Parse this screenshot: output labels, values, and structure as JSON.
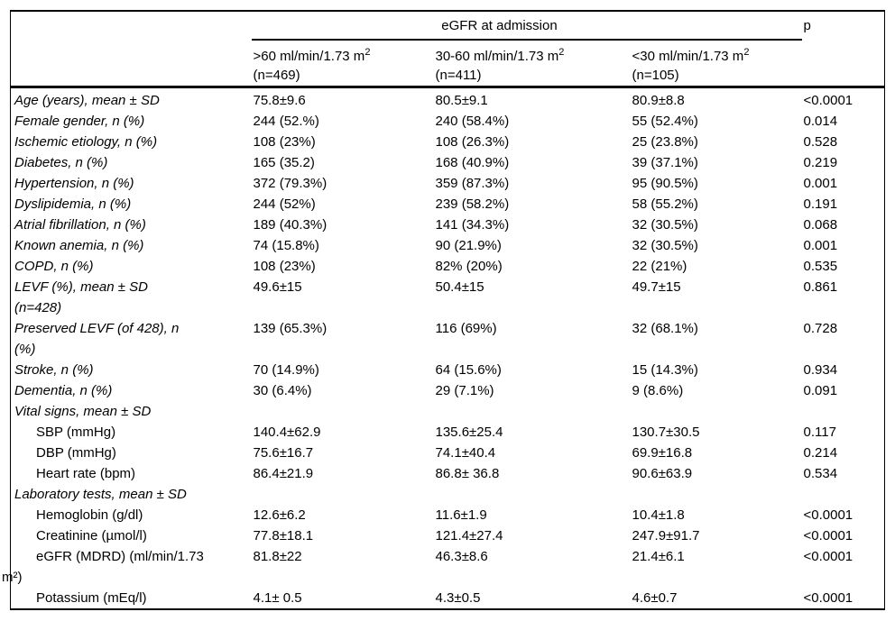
{
  "table": {
    "header": {
      "group_label": "eGFR at admission",
      "p_label": "p",
      "columns": [
        {
          "name": ">60 ml/min/1.73 m",
          "sup": "2",
          "n": "(n=469)"
        },
        {
          "name": "30-60 ml/min/1.73 m",
          "sup": "2",
          "n": "(n=411)"
        },
        {
          "name": "<30 ml/min/1.73 m",
          "sup": "2",
          "n": "(n=105)"
        }
      ]
    },
    "rows": [
      {
        "label": "Age (years), mean ± SD",
        "style": "italic",
        "values": [
          "75.8±9.6",
          "80.5±9.1",
          "80.9±8.8",
          "<0.0001"
        ]
      },
      {
        "label": "Female gender, n (%)",
        "style": "italic",
        "values": [
          "244 (52.%)",
          "240 (58.4%)",
          "55 (52.4%)",
          "0.014"
        ]
      },
      {
        "label": "Ischemic etiology, n (%)",
        "style": "italic",
        "values": [
          "108 (23%)",
          "108 (26.3%)",
          "25 (23.8%)",
          "0.528"
        ]
      },
      {
        "label": "Diabetes, n (%)",
        "style": "italic",
        "values": [
          "165 (35.2)",
          "168 (40.9%)",
          "39 (37.1%)",
          "0.219"
        ]
      },
      {
        "label": "Hypertension, n (%)",
        "style": "italic",
        "values": [
          "372 (79.3%)",
          "359 (87.3%)",
          "95 (90.5%)",
          "0.001"
        ]
      },
      {
        "label": "Dyslipidemia, n (%)",
        "style": "italic",
        "values": [
          "244 (52%)",
          "239 (58.2%)",
          "58 (55.2%)",
          "0.191"
        ]
      },
      {
        "label": "Atrial fibrillation, n (%)",
        "style": "italic",
        "values": [
          "189 (40.3%)",
          "141 (34.3%)",
          "32 (30.5%)",
          "0.068"
        ]
      },
      {
        "label": "Known anemia, n (%)",
        "style": "italic",
        "values": [
          "74 (15.8%)",
          "90 (21.9%)",
          "32 (30.5%)",
          "0.001"
        ]
      },
      {
        "label": "COPD, n (%)",
        "style": "italic",
        "values": [
          "108 (23%)",
          "82% (20%)",
          "22 (21%)",
          "0.535"
        ]
      },
      {
        "label": "LEVF (%), mean ± SD\n(n=428)",
        "style": "italic",
        "values": [
          "49.6±15",
          "50.4±15",
          "49.7±15",
          "0.861"
        ]
      },
      {
        "label": "Preserved LEVF (of 428), n\n(%)",
        "style": "italic",
        "values": [
          "139 (65.3%)",
          "116 (69%)",
          "32 (68.1%)",
          "0.728"
        ]
      },
      {
        "label": "Stroke, n (%)",
        "style": "italic",
        "values": [
          "70 (14.9%)",
          "64 (15.6%)",
          "15 (14.3%)",
          "0.934"
        ]
      },
      {
        "label": "Dementia, n (%)",
        "style": "italic",
        "values": [
          "30 (6.4%)",
          "29 (7.1%)",
          "9 (8.6%)",
          "0.091"
        ]
      },
      {
        "label": "Vital signs, mean ± SD",
        "style": "section",
        "values": [
          "",
          "",
          "",
          ""
        ]
      },
      {
        "label": "SBP (mmHg)",
        "style": "sub",
        "values": [
          "140.4±62.9",
          "135.6±25.4",
          "130.7±30.5",
          "0.117"
        ]
      },
      {
        "label": "DBP (mmHg)",
        "style": "sub",
        "values": [
          "75.6±16.7",
          "74.1±40.4",
          "69.9±16.8",
          "0.214"
        ]
      },
      {
        "label": "Heart rate (bpm)",
        "style": "sub",
        "values": [
          "86.4±21.9",
          "86.8± 36.8",
          "90.6±63.9",
          "0.534"
        ]
      },
      {
        "label": "Laboratory tests, mean ± SD",
        "style": "section",
        "values": [
          "",
          "",
          "",
          ""
        ]
      },
      {
        "label": "Hemoglobin (g/dl)",
        "style": "sub",
        "values": [
          "12.6±6.2",
          "11.6±1.9",
          "10.4±1.8",
          "<0.0001"
        ]
      },
      {
        "label": "Creatinine (µmol/l)",
        "style": "sub",
        "values": [
          "77.8±18.1",
          "121.4±27.4",
          "247.9±91.7",
          "<0.0001"
        ]
      },
      {
        "label": "eGFR (MDRD) (ml/min/1.73\nm²)",
        "style": "hanging",
        "values": [
          "81.8±22",
          "46.3±8.6",
          "21.4±6.1",
          "<0.0001"
        ]
      },
      {
        "label": "Potassium (mEq/l)",
        "style": "sub",
        "values": [
          "4.1± 0.5",
          "4.3±0.5",
          "4.6±0.7",
          "<0.0001"
        ]
      }
    ]
  }
}
